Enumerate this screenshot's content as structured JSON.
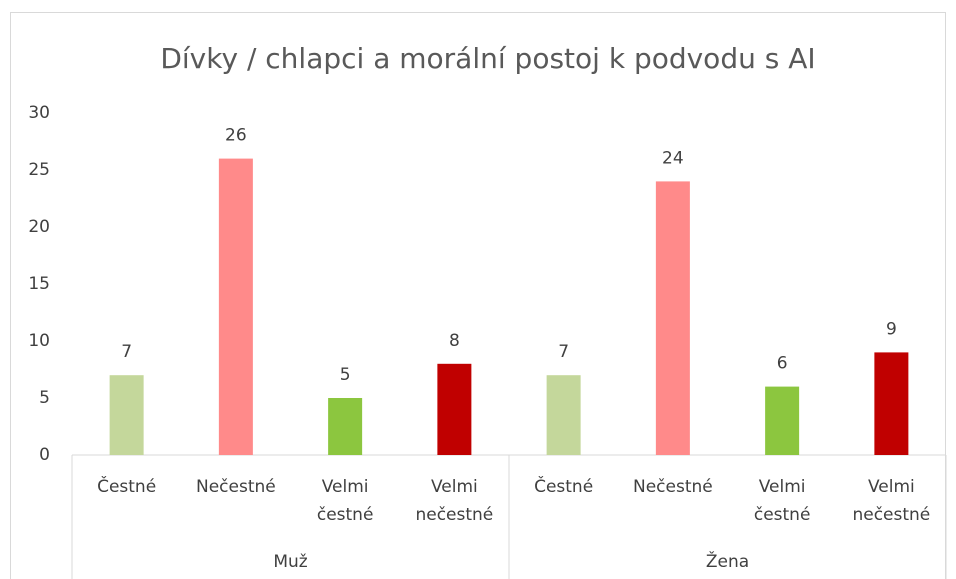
{
  "chart_data": {
    "type": "bar",
    "title": "Dívky / chlapci a morální postoj k podvodu s AI",
    "groups": [
      "Muž",
      "Žena"
    ],
    "categories": [
      "Čestné",
      "Nečestné",
      "Velmi čestné",
      "Velmi nečestné",
      "Čestné",
      "Nečestné",
      "Velmi čestné",
      "Velmi nečestné"
    ],
    "values": [
      7,
      26,
      5,
      8,
      7,
      24,
      6,
      9
    ],
    "colors": [
      "#c4d79b",
      "#ff8a8a",
      "#8cc63f",
      "#c00000",
      "#c4d79b",
      "#ff8a8a",
      "#8cc63f",
      "#c00000"
    ],
    "ylim": [
      0,
      30
    ],
    "yticks": [
      0,
      5,
      10,
      15,
      20,
      25,
      30
    ],
    "grid": false
  }
}
